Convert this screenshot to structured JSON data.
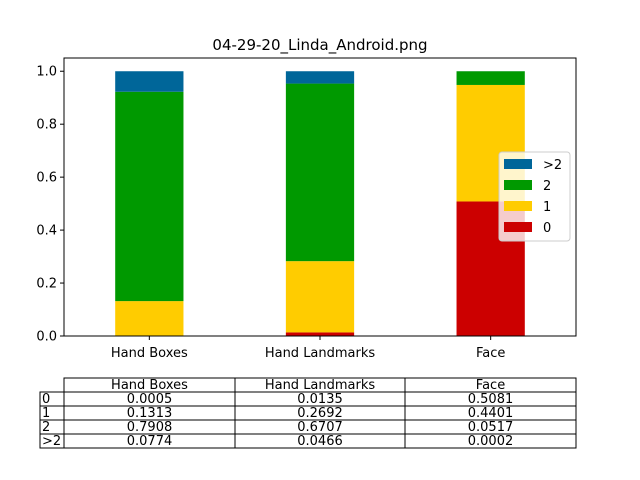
{
  "chart_data": {
    "type": "bar",
    "stacked": true,
    "title": "04-29-20_Linda_Android.png",
    "categories": [
      "Hand Boxes",
      "Hand Landmarks",
      "Face"
    ],
    "series": [
      {
        "name": "0",
        "values": [
          0.0005,
          0.0135,
          0.5081
        ],
        "color": "#cc0000"
      },
      {
        "name": "1",
        "values": [
          0.1313,
          0.2692,
          0.4401
        ],
        "color": "#ffcc00"
      },
      {
        "name": "2",
        "values": [
          0.7908,
          0.6707,
          0.0517
        ],
        "color": "#009900"
      },
      {
        "name": ">2",
        "values": [
          0.0774,
          0.0466,
          0.0002
        ],
        "color": "#006699"
      }
    ],
    "ylim": [
      0,
      1.05
    ],
    "yticks": [
      "0.0",
      "0.2",
      "0.4",
      "0.6",
      "0.8",
      "1.0"
    ],
    "legend": {
      "placement": "center-right",
      "order": [
        ">2",
        "2",
        "1",
        "0"
      ]
    },
    "grid": false,
    "table": {
      "col_labels": [
        "Hand Boxes",
        "Hand Landmarks",
        "Face"
      ],
      "rows": [
        {
          "label": "0",
          "cells": [
            "0.0005",
            "0.0135",
            "0.5081"
          ]
        },
        {
          "label": "1",
          "cells": [
            "0.1313",
            "0.2692",
            "0.4401"
          ]
        },
        {
          "label": "2",
          "cells": [
            "0.7908",
            "0.6707",
            "0.0517"
          ]
        },
        {
          "label": ">2",
          "cells": [
            "0.0774",
            "0.0466",
            "0.0002"
          ]
        }
      ]
    }
  }
}
